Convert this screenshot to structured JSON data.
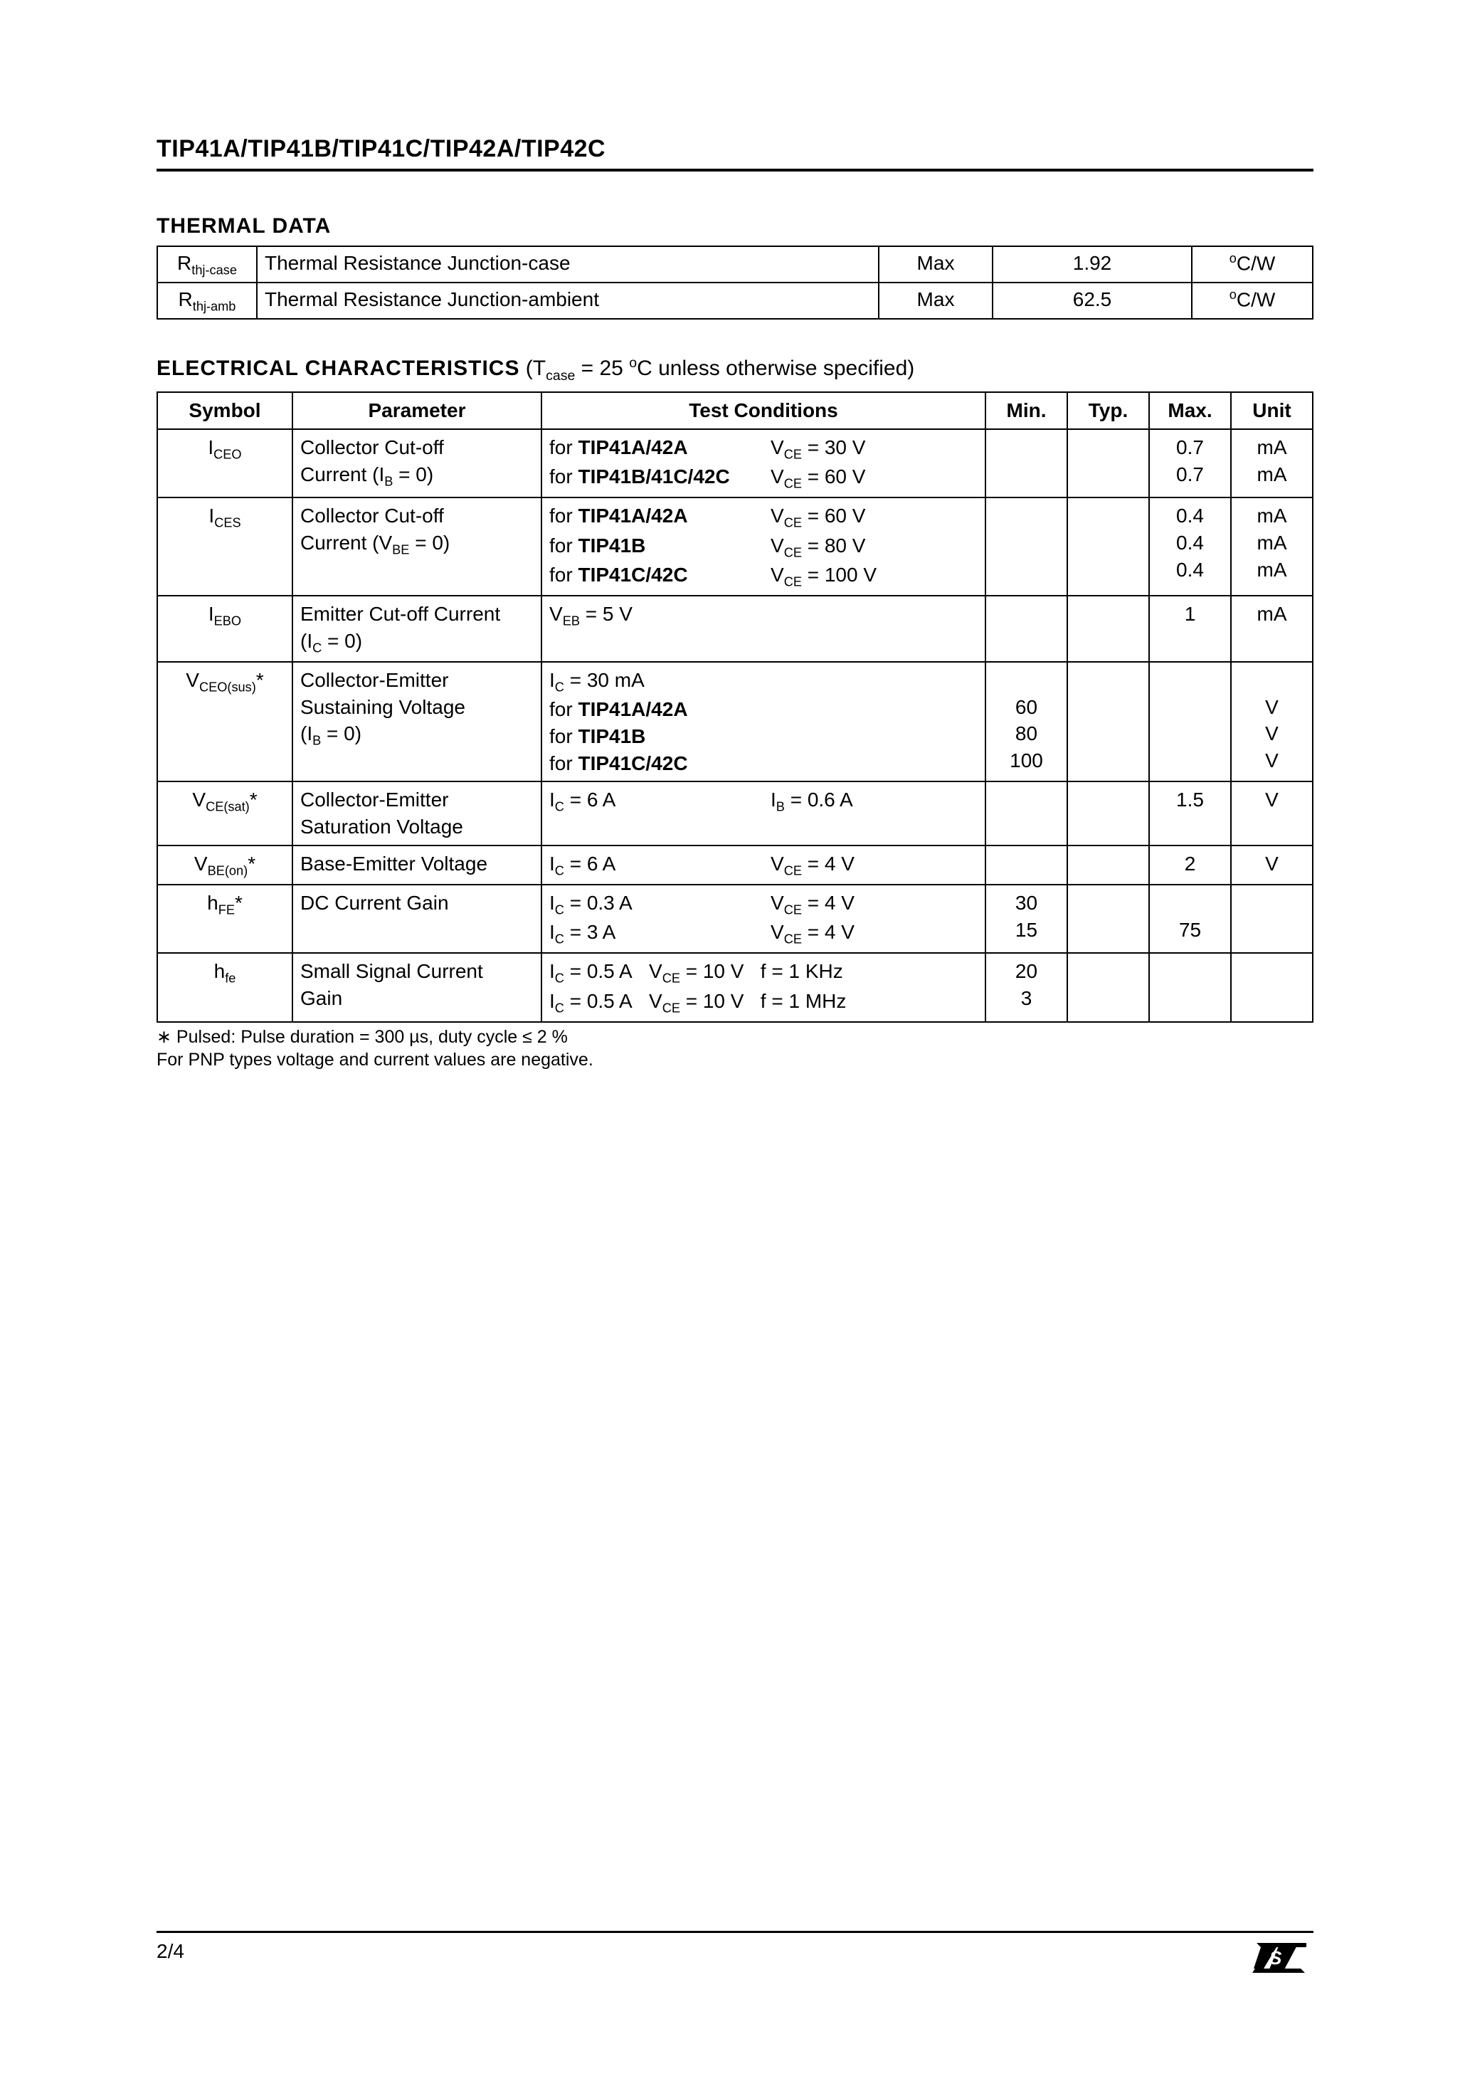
{
  "header_title": "TIP41A/TIP41B/TIP41C/TIP42A/TIP42C",
  "thermal": {
    "heading": "THERMAL  DATA",
    "rows": [
      {
        "symbol_base": "R",
        "symbol_sub": "thj-case",
        "desc": "Thermal  Resistance  Junction-case",
        "limit": "Max",
        "value": "1.92",
        "unit_pre": "o",
        "unit": "C/W"
      },
      {
        "symbol_base": "R",
        "symbol_sub": "thj-amb",
        "desc": "Thermal  Resistance  Junction-ambient",
        "limit": "Max",
        "value": "62.5",
        "unit_pre": "o",
        "unit": "C/W"
      }
    ]
  },
  "elec": {
    "heading_bold": "ELECTRICAL  CHARACTERISTICS",
    "heading_rest": "  (T",
    "heading_sub": "case",
    "heading_after": " = 25 ",
    "heading_sup": "o",
    "heading_tail": "C unless otherwise specified)",
    "columns": [
      "Symbol",
      "Parameter",
      "Test Conditions",
      "Min.",
      "Typ.",
      "Max.",
      "Unit"
    ],
    "rows": [
      {
        "symbol_html": "I<span class='sub'>CEO</span>",
        "parameter": "Collector Cut-off\nCurrent (I_B = 0)",
        "param_detail_sub": "B",
        "param_detail_tail": " = 0)",
        "cond_left": [
          "for <b>TIP41A/42A</b>",
          "for <b>TIP41B/41C/42C</b>"
        ],
        "cond_right": [
          "V<span class='sub'>CE</span> = 30 V",
          "V<span class='sub'>CE</span> = 60 V"
        ],
        "min": "",
        "typ": "",
        "max": "0.7\n0.7",
        "unit": "mA\nmA"
      },
      {
        "symbol_html": "I<span class='sub'>CES</span>",
        "parameter": "Collector Cut-off\nCurrent (V_BE = 0)",
        "param_detail_sub": "BE",
        "param_detail_tail": " = 0)",
        "cond_left": [
          "for <b>TIP41A/42A</b>",
          "for <b>TIP41B</b>",
          "for <b>TIP41C/42C</b>"
        ],
        "cond_right": [
          "V<span class='sub'>CE</span> = 60 V",
          "V<span class='sub'>CE</span> = 80 V",
          "V<span class='sub'>CE</span> = 100 V"
        ],
        "min": "",
        "typ": "",
        "max": "0.4\n0.4\n0.4",
        "unit": "mA\nmA\nmA"
      },
      {
        "symbol_html": "I<span class='sub'>EBO</span>",
        "parameter": "Emitter Cut-off Current\n(I_C = 0)",
        "param_detail_sub": "C",
        "param_detail_tail": " = 0)",
        "cond_left": [
          "V<span class='sub'>EB</span> = 5 V"
        ],
        "cond_right": [],
        "min": "",
        "typ": "",
        "max": "1",
        "unit": "mA"
      },
      {
        "symbol_html": "V<span class='sub'>CEO(sus)</span>*",
        "parameter": "Collector-Emitter\nSustaining Voltage\n(I_B = 0)",
        "param_detail_sub": "B",
        "param_detail_tail": " = 0)",
        "cond_left": [
          "I<span class='sub'>C</span> = 30 mA",
          "for <b>TIP41A/42A</b>",
          "for <b>TIP41B</b>",
          "for <b>TIP41C/42C</b>"
        ],
        "cond_right": [
          "",
          "",
          "",
          ""
        ],
        "min": "\n60\n80\n100",
        "typ": "",
        "max": "",
        "unit": "\nV\nV\nV"
      },
      {
        "symbol_html": "V<span class='sub'>CE(sat)</span>*",
        "parameter_plain": "Collector-Emitter\nSaturation Voltage",
        "cond_left": [
          "I<span class='sub'>C</span> = 6 A"
        ],
        "cond_right": [
          "I<span class='sub'>B</span> = 0.6 A"
        ],
        "min": "",
        "typ": "",
        "max": "1.5",
        "unit": "V"
      },
      {
        "symbol_html": "V<span class='sub'>BE(on)</span>*",
        "parameter_plain": "Base-Emitter Voltage",
        "cond_left": [
          "I<span class='sub'>C</span> = 6 A"
        ],
        "cond_right": [
          "V<span class='sub'>CE</span> = 4 V"
        ],
        "min": "",
        "typ": "",
        "max": "2",
        "unit": "V"
      },
      {
        "symbol_html": "h<span class='sub'>FE</span>*",
        "parameter_plain": "DC Current Gain",
        "cond_left": [
          "I<span class='sub'>C</span> = 0.3 A",
          "I<span class='sub'>C</span> = 3 A"
        ],
        "cond_right": [
          "V<span class='sub'>CE</span> = 4 V",
          "V<span class='sub'>CE</span> = 4 V"
        ],
        "min": "30\n15",
        "typ": "",
        "max": "\n75",
        "unit": ""
      },
      {
        "symbol_html": "h<span class='sub'>fe</span>",
        "parameter_plain": "Small Signal Current\nGain",
        "cond_full": [
          "I<span class='sub'>C</span> = 0.5 A&nbsp;&nbsp;&nbsp;V<span class='sub'>CE</span> = 10 V&nbsp;&nbsp;&nbsp;f = 1 KHz",
          "I<span class='sub'>C</span> = 0.5 A&nbsp;&nbsp;&nbsp;V<span class='sub'>CE</span> = 10 V&nbsp;&nbsp;&nbsp;f = 1 MHz"
        ],
        "min": "20\n3",
        "typ": "",
        "max": "",
        "unit": ""
      }
    ],
    "footnote1": "∗ Pulsed: Pulse duration = 300 µs, duty cycle ≤ 2 %",
    "footnote2": "For PNP types voltage and current values are negative."
  },
  "footer": {
    "page_num": "2/4"
  },
  "col_widths": {
    "thermal": [
      "140px",
      "680px",
      "160px",
      "280px",
      "170px"
    ],
    "elec": [
      "170px",
      "330px",
      "540px",
      "110px",
      "110px",
      "110px",
      "110px"
    ]
  }
}
